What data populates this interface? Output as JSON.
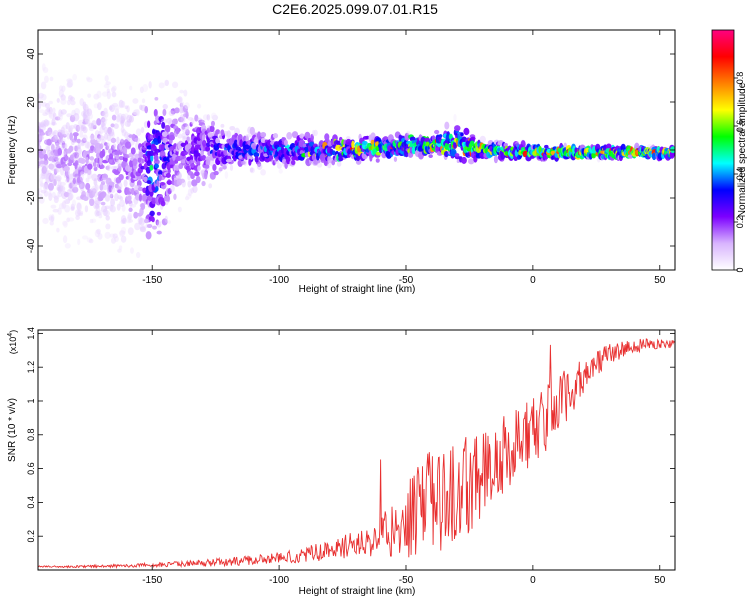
{
  "title": "C2E6.2025.099.07.01.R15",
  "chart_data": [
    {
      "type": "heatmap",
      "xlabel": "Height of straight line (km)",
      "ylabel": "Frequency (Hz)",
      "xlim": [
        -195,
        56
      ],
      "ylim": [
        -50,
        50
      ],
      "xticks": [
        -150,
        -100,
        -50,
        0,
        50
      ],
      "yticks": [
        -40,
        -20,
        0,
        20,
        40
      ],
      "colorbar": {
        "label": "Normalized spectral amplitude",
        "range": [
          0,
          1
        ],
        "ticks": [
          0.0,
          0.2,
          0.4,
          0.6,
          0.8
        ],
        "colors": [
          "#ffffff",
          "#d8b4fe",
          "#7c00ff",
          "#0000ff",
          "#00ffff",
          "#00ff00",
          "#ffff00",
          "#ff8000",
          "#ff0000",
          "#ff0080"
        ]
      },
      "ridge": [
        {
          "x": -195,
          "center": 0,
          "spread": 50,
          "amp": 0.12
        },
        {
          "x": -155,
          "center": -8,
          "spread": 45,
          "amp": 0.18
        },
        {
          "x": -150,
          "center": -7,
          "spread": 45,
          "amp": 0.45
        },
        {
          "x": -140,
          "center": 0,
          "spread": 35,
          "amp": 0.2
        },
        {
          "x": -120,
          "center": 0,
          "spread": 12,
          "amp": 0.35
        },
        {
          "x": -100,
          "center": 0,
          "spread": 10,
          "amp": 0.4
        },
        {
          "x": -80,
          "center": 0,
          "spread": 8,
          "amp": 0.45
        },
        {
          "x": -60,
          "center": 1,
          "spread": 7,
          "amp": 0.55
        },
        {
          "x": -40,
          "center": 2,
          "spread": 6,
          "amp": 0.6
        },
        {
          "x": -30,
          "center": 3,
          "spread": 12,
          "amp": 0.55
        },
        {
          "x": -20,
          "center": 0,
          "spread": 5,
          "amp": 0.65
        },
        {
          "x": 0,
          "center": -1,
          "spread": 4,
          "amp": 0.7
        },
        {
          "x": 20,
          "center": -1,
          "spread": 3.5,
          "amp": 0.75
        },
        {
          "x": 40,
          "center": -1,
          "spread": 3,
          "amp": 0.75
        },
        {
          "x": 56,
          "center": -1,
          "spread": 3,
          "amp": 0.7
        }
      ]
    },
    {
      "type": "line",
      "xlabel": "Height of straight line (km)",
      "ylabel": "SNR (10 * v/v)",
      "yscale_label": "(x10",
      "yscale_exp": "4",
      "xlim": [
        -195,
        56
      ],
      "ylim": [
        0,
        1.42
      ],
      "xticks": [
        -150,
        -100,
        -50,
        0,
        50
      ],
      "yticks": [
        0.2,
        0.4,
        0.6,
        0.8,
        1.0,
        1.2,
        1.4
      ],
      "series": [
        {
          "color": "#e83030",
          "x": [
            -195,
            -180,
            -160,
            -150,
            -140,
            -130,
            -120,
            -110,
            -100,
            -90,
            -80,
            -70,
            -60,
            -55,
            -50,
            -45,
            -40,
            -35,
            -30,
            -25,
            -20,
            -15,
            -10,
            -5,
            0,
            5,
            10,
            15,
            20,
            25,
            30,
            35,
            40,
            45,
            50,
            56
          ],
          "y": [
            0.02,
            0.02,
            0.025,
            0.03,
            0.035,
            0.04,
            0.05,
            0.06,
            0.07,
            0.09,
            0.12,
            0.15,
            0.2,
            0.25,
            0.28,
            0.35,
            0.4,
            0.42,
            0.45,
            0.52,
            0.58,
            0.62,
            0.7,
            0.78,
            0.82,
            0.9,
            0.98,
            1.05,
            1.15,
            1.22,
            1.28,
            1.3,
            1.32,
            1.34,
            1.34,
            1.33
          ],
          "noise": [
            0.005,
            0.006,
            0.01,
            0.012,
            0.015,
            0.02,
            0.025,
            0.03,
            0.035,
            0.045,
            0.06,
            0.08,
            0.12,
            0.18,
            0.22,
            0.28,
            0.32,
            0.3,
            0.3,
            0.3,
            0.28,
            0.26,
            0.24,
            0.22,
            0.2,
            0.2,
            0.18,
            0.15,
            0.1,
            0.08,
            0.06,
            0.05,
            0.04,
            0.035,
            0.03,
            0.03
          ]
        }
      ]
    }
  ]
}
